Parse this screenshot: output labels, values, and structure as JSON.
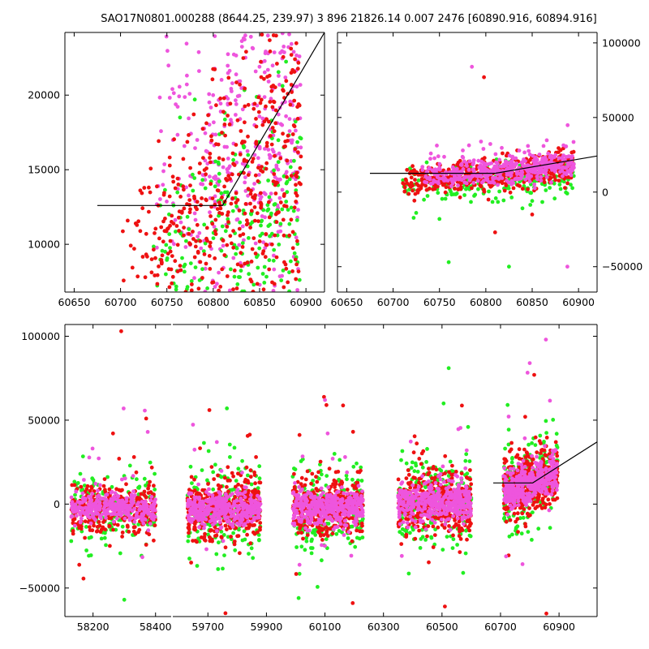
{
  "title": "SAO17N0801.000288 (8644.25, 239.97)   3 896 21826.14 0.007 2476 [60890.916, 60894.916]",
  "colors": {
    "green": "#22ee22",
    "red": "#ee1111",
    "magenta": "#ee55dd",
    "line": "#000000"
  },
  "chart_data": [
    {
      "type": "scatter",
      "panel": "top-left",
      "xlim": [
        60640,
        60920
      ],
      "ylim": [
        6800,
        24200
      ],
      "xticks": [
        60650,
        60700,
        60750,
        60800,
        60850,
        60900
      ],
      "yticks": [
        10000,
        15000,
        20000
      ],
      "ytick_side": "left",
      "series": [
        {
          "color": "green",
          "x_range": [
            60730,
            60895
          ],
          "y_range": [
            6800,
            19000
          ],
          "trend": "rising",
          "count": 260
        },
        {
          "color": "red",
          "x_range": [
            60700,
            60895
          ],
          "y_range": [
            6800,
            24000
          ],
          "trend": "rising",
          "count": 520
        },
        {
          "color": "magenta",
          "x_range": [
            60735,
            60895
          ],
          "y_range": [
            7000,
            24000
          ],
          "trend": "rising",
          "count": 380
        }
      ],
      "fit_line": {
        "x": [
          60675,
          60810,
          60920
        ],
        "y": [
          12600,
          12600,
          24200
        ]
      }
    },
    {
      "type": "scatter",
      "panel": "top-right",
      "xlim": [
        60640,
        60920
      ],
      "ylim": [
        -67000,
        107000
      ],
      "xticks": [
        60650,
        60700,
        60750,
        60800,
        60850,
        60900
      ],
      "yticks": [
        -50000,
        0,
        50000,
        100000
      ],
      "ytick_side": "right",
      "series": [
        {
          "color": "green",
          "x_range": [
            60710,
            60895
          ],
          "y_range": [
            -12000,
            28000
          ],
          "count": 220
        },
        {
          "color": "red",
          "x_range": [
            60710,
            60895
          ],
          "y_range": [
            -8000,
            32000
          ],
          "count": 520
        },
        {
          "color": "magenta",
          "x_range": [
            60730,
            60895
          ],
          "y_range": [
            3000,
            40000
          ],
          "count": 450
        }
      ],
      "outliers": [
        {
          "color": "magenta",
          "x": 60785,
          "y": 84000
        },
        {
          "color": "red",
          "x": 60798,
          "y": 77000
        },
        {
          "color": "red",
          "x": 60810,
          "y": -27000
        },
        {
          "color": "green",
          "x": 60825,
          "y": -50000
        },
        {
          "color": "green",
          "x": 60760,
          "y": -47000
        },
        {
          "color": "magenta",
          "x": 60888,
          "y": -50000
        },
        {
          "color": "red",
          "x": 60850,
          "y": -15000
        },
        {
          "color": "green",
          "x": 60750,
          "y": -18000
        }
      ],
      "fit_line": {
        "x": [
          60675,
          60810,
          60920
        ],
        "y": [
          12600,
          12600,
          24200
        ]
      }
    },
    {
      "type": "scatter",
      "panel": "bottom",
      "ylim": [
        -67000,
        107000
      ],
      "yticks": [
        -50000,
        0,
        50000,
        100000
      ],
      "broken_axis": [
        {
          "xlim": [
            58110,
            58450
          ],
          "xticks": [
            58200,
            58400
          ]
        },
        {
          "xlim": [
            59580,
            61030
          ],
          "xticks": [
            59700,
            59900,
            60100,
            60300,
            60500,
            60700,
            60900
          ]
        }
      ],
      "groups": [
        {
          "x_range": [
            58130,
            58400
          ],
          "y_center": -2000,
          "y_spread": 12000
        },
        {
          "x_range": [
            59630,
            59880
          ],
          "y_center": -3000,
          "y_spread": 15000
        },
        {
          "x_range": [
            59990,
            60230
          ],
          "y_center": -2000,
          "y_spread": 14000
        },
        {
          "x_range": [
            60350,
            60600
          ],
          "y_center": 1000,
          "y_spread": 16000
        },
        {
          "x_range": [
            60710,
            60895
          ],
          "y_center": 12000,
          "y_spread": 16000
        }
      ],
      "outliers": [
        {
          "color": "red",
          "x": 58290,
          "y": 103000
        },
        {
          "color": "red",
          "x": 58370,
          "y": 51000
        },
        {
          "color": "magenta",
          "x": 58375,
          "y": 43000
        },
        {
          "color": "green",
          "x": 58300,
          "y": -57000
        },
        {
          "color": "green",
          "x": 59765,
          "y": 57000
        },
        {
          "color": "red",
          "x": 59705,
          "y": 56000
        },
        {
          "color": "red",
          "x": 59760,
          "y": -65000
        },
        {
          "color": "magenta",
          "x": 60100,
          "y": 62000
        },
        {
          "color": "red",
          "x": 60105,
          "y": 59000
        },
        {
          "color": "green",
          "x": 60010,
          "y": -56000
        },
        {
          "color": "red",
          "x": 60195,
          "y": -59000
        },
        {
          "color": "green",
          "x": 60523,
          "y": 81000
        },
        {
          "color": "red",
          "x": 60510,
          "y": -61000
        },
        {
          "color": "magenta",
          "x": 60855,
          "y": 98000
        },
        {
          "color": "magenta",
          "x": 60800,
          "y": 84000
        },
        {
          "color": "red",
          "x": 60815,
          "y": 77000
        }
      ],
      "fit_line": {
        "x": [
          60675,
          60810,
          61030
        ],
        "y": [
          12600,
          12600,
          37000
        ]
      }
    }
  ]
}
